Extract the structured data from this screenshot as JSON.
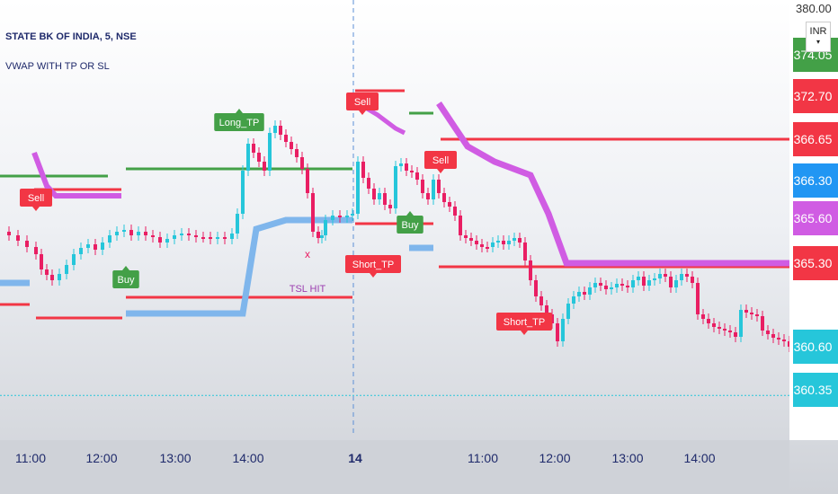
{
  "header": {
    "symbol_line": "STATE BK OF INDIA, 5, NSE",
    "indicator_name": "VWAP WITH TP OR SL"
  },
  "currency_button": {
    "label": "INR"
  },
  "colors": {
    "red": "#f23645",
    "green": "#43a047",
    "blue": "#2196f3",
    "teal": "#26c6da",
    "violet": "#d05ce3",
    "vwap_blue": "#7fb6ec",
    "crimson": "#e91e63"
  },
  "chart_data": {
    "type": "candlestick",
    "ylim": [
      359.3,
      375.0
    ],
    "y_ticks_visible": [
      "380.00",
      "374.05",
      "372.70",
      "366.65",
      "366.30",
      "365.60",
      "365.30",
      "360.60",
      "360.35"
    ],
    "price_badges": [
      {
        "label": "374.05",
        "color": "green"
      },
      {
        "label": "372.70",
        "color": "red"
      },
      {
        "label": "366.65",
        "color": "red"
      },
      {
        "label": "366.30",
        "color": "blue"
      },
      {
        "label": "365.60",
        "color": "violet"
      },
      {
        "label": "365.30",
        "color": "red"
      },
      {
        "label": "360.60",
        "color": "teal"
      },
      {
        "label": "360.35",
        "color": "teal"
      }
    ],
    "x_ticks": [
      "11:00",
      "12:00",
      "13:00",
      "14:00",
      "14",
      "11:00",
      "12:00",
      "13:00",
      "14:00"
    ],
    "session_break_label": "14",
    "signals": [
      {
        "label": "Sell",
        "type": "sell"
      },
      {
        "label": "Buy",
        "type": "buy"
      },
      {
        "label": "Long_TP",
        "type": "buy"
      },
      {
        "label": "Sell",
        "type": "sell"
      },
      {
        "label": "Sell",
        "type": "sell"
      },
      {
        "label": "Buy",
        "type": "buy"
      },
      {
        "label": "Short_TP",
        "type": "sell"
      },
      {
        "label": "Short_TP",
        "type": "sell"
      }
    ],
    "annotations": [
      {
        "label": "TSL HIT"
      },
      {
        "label": "x"
      }
    ],
    "last_price": 360.6
  }
}
